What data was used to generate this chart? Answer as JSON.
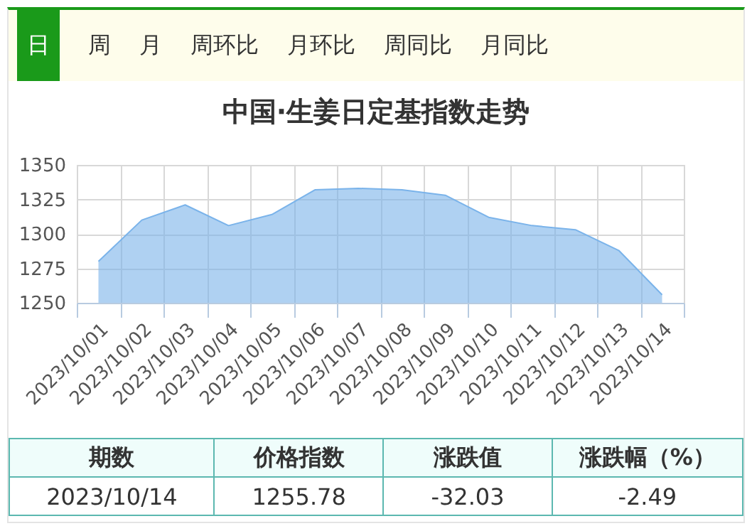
{
  "chart_data": {
    "type": "area",
    "title": "中国·生姜日定基指数走势",
    "categories": [
      "2023/10/01",
      "2023/10/02",
      "2023/10/03",
      "2023/10/04",
      "2023/10/05",
      "2023/10/06",
      "2023/10/07",
      "2023/10/08",
      "2023/10/09",
      "2023/10/10",
      "2023/10/11",
      "2023/10/12",
      "2023/10/13",
      "2023/10/14"
    ],
    "series": [
      {
        "color": "#7ab3ea",
        "values": [
          1280,
          1310,
          1321,
          1306,
          1314,
          1332,
          1333,
          1332,
          1328,
          1312,
          1306,
          1303,
          1288,
          1255.78
        ]
      }
    ],
    "ylim": [
      1250,
      1350
    ],
    "yticks": [
      1250,
      1275,
      1300,
      1325,
      1350
    ],
    "grid": true,
    "annotations": [
      "日",
      "周",
      "月",
      "周环比",
      "月环比",
      "周同比",
      "月同比",
      "期数",
      "价格指数",
      "涨跌值",
      "涨跌幅（%）",
      "2023/10/14",
      "1255.78",
      "-32.03",
      "-2.49"
    ]
  }
}
